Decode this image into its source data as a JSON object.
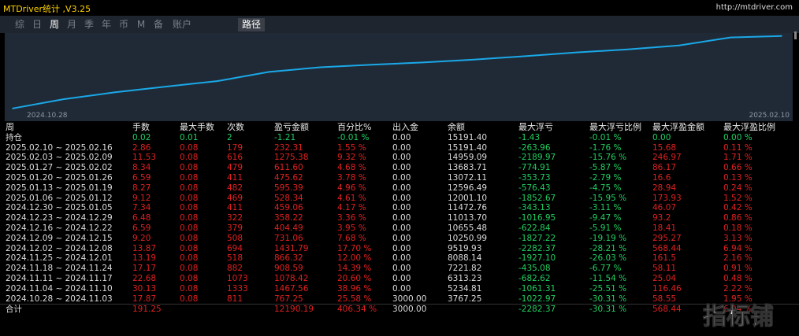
{
  "window": {
    "title": "MTDriver统计 ,V3.25",
    "url": "http://mtdriver.com"
  },
  "toolbar": {
    "tabs": [
      "综",
      "日",
      "周",
      "月",
      "季",
      "年",
      "币",
      "M",
      "备",
      "账户"
    ],
    "active_tab": "周",
    "path_button": "路径"
  },
  "chart": {
    "start_date": "2024.10.28",
    "end_date": "2025.02.10"
  },
  "chart_data": {
    "type": "line",
    "x": [
      "2024.10.28",
      "2024.11.04",
      "2024.11.11",
      "2024.11.18",
      "2024.11.25",
      "2024.12.02",
      "2024.12.09",
      "2024.12.16",
      "2024.12.23",
      "2024.12.30",
      "2025.01.06",
      "2025.01.13",
      "2025.01.20",
      "2025.01.27",
      "2025.02.03",
      "2025.02.10"
    ],
    "series": [
      {
        "values": [
          3767.25,
          5234.81,
          6313.23,
          7221.82,
          8088.14,
          9519.93,
          10250.99,
          10655.48,
          11013.7,
          11472.76,
          12001.1,
          12596.49,
          13072.11,
          13683.71,
          14959.09,
          15191.4
        ]
      }
    ],
    "line_color": "#1aa8e8"
  },
  "table": {
    "headers": [
      "周",
      "手数",
      "最大手数",
      "次数",
      "盈亏金额",
      "百分比%",
      "出入金",
      "余额",
      "最大浮亏",
      "最大浮亏比例",
      "最大浮盈金额",
      "最大浮盈比例"
    ],
    "holding": [
      "持仓",
      "0.02",
      "0.01",
      "2",
      "-1.21",
      "-0.01 %",
      "0.00",
      "15191.40",
      "-1.43",
      "-0.01 %",
      "0.00",
      "0.00 %"
    ],
    "rows": [
      [
        "2025.02.10 ~ 2025.02.16",
        "2.86",
        "0.08",
        "179",
        "232.31",
        "1.55 %",
        "0.00",
        "15191.40",
        "-263.96",
        "-1.76 %",
        "15.68",
        "0.11 %"
      ],
      [
        "2025.02.03 ~ 2025.02.09",
        "11.53",
        "0.08",
        "616",
        "1275.38",
        "9.32 %",
        "0.00",
        "14959.09",
        "-2189.97",
        "-15.76 %",
        "246.97",
        "1.71 %"
      ],
      [
        "2025.01.27 ~ 2025.02.02",
        "8.34",
        "0.08",
        "479",
        "611.60",
        "4.68 %",
        "0.00",
        "13683.71",
        "-774.91",
        "-5.87 %",
        "86.17",
        "0.66 %"
      ],
      [
        "2025.01.20 ~ 2025.01.26",
        "6.59",
        "0.08",
        "411",
        "475.62",
        "3.78 %",
        "0.00",
        "13072.11",
        "-353.73",
        "-2.79 %",
        "16.6",
        "0.13 %"
      ],
      [
        "2025.01.13 ~ 2025.01.19",
        "8.27",
        "0.08",
        "482",
        "595.39",
        "4.96 %",
        "0.00",
        "12596.49",
        "-576.43",
        "-4.75 %",
        "28.94",
        "0.24 %"
      ],
      [
        "2025.01.06 ~ 2025.01.12",
        "9.12",
        "0.08",
        "469",
        "528.34",
        "4.61 %",
        "0.00",
        "12001.10",
        "-1852.67",
        "-15.95 %",
        "173.93",
        "1.52 %"
      ],
      [
        "2024.12.30 ~ 2025.01.05",
        "7.34",
        "0.08",
        "411",
        "459.06",
        "4.17 %",
        "0.00",
        "11472.76",
        "-343.13",
        "-3.11 %",
        "46.07",
        "0.42 %"
      ],
      [
        "2024.12.23 ~ 2024.12.29",
        "6.48",
        "0.08",
        "322",
        "358.22",
        "3.36 %",
        "0.00",
        "11013.70",
        "-1016.95",
        "-9.47 %",
        "93.2",
        "0.86 %"
      ],
      [
        "2024.12.16 ~ 2024.12.22",
        "6.59",
        "0.08",
        "379",
        "404.49",
        "3.95 %",
        "0.00",
        "10655.48",
        "-622.84",
        "-5.91 %",
        "18.41",
        "0.18 %"
      ],
      [
        "2024.12.09 ~ 2024.12.15",
        "9.20",
        "0.08",
        "508",
        "731.06",
        "7.68 %",
        "0.00",
        "10250.99",
        "-1827.22",
        "-19.19 %",
        "295.27",
        "3.13 %"
      ],
      [
        "2024.12.02 ~ 2024.12.08",
        "13.87",
        "0.08",
        "694",
        "1431.79",
        "17.70 %",
        "0.00",
        "9519.93",
        "-2282.37",
        "-28.21 %",
        "568.44",
        "6.94 %"
      ],
      [
        "2024.11.25 ~ 2024.12.01",
        "13.19",
        "0.08",
        "518",
        "866.32",
        "12.00 %",
        "0.00",
        "8088.14",
        "-1927.10",
        "-26.03 %",
        "161.5",
        "2.16 %"
      ],
      [
        "2024.11.18 ~ 2024.11.24",
        "17.17",
        "0.08",
        "882",
        "908.59",
        "14.39 %",
        "0.00",
        "7221.82",
        "-435.08",
        "-6.77 %",
        "58.11",
        "0.91 %"
      ],
      [
        "2024.11.11 ~ 2024.11.17",
        "22.68",
        "0.08",
        "1073",
        "1078.42",
        "20.60 %",
        "0.00",
        "6313.23",
        "-682.62",
        "-11.54 %",
        "25.04",
        "0.48 %"
      ],
      [
        "2024.11.04 ~ 2024.11.10",
        "30.13",
        "0.08",
        "1333",
        "1467.56",
        "38.96 %",
        "0.00",
        "5234.81",
        "-1061.31",
        "-25.51 %",
        "116.46",
        "2.22 %"
      ],
      [
        "2024.10.28 ~ 2024.11.03",
        "17.87",
        "0.08",
        "811",
        "767.25",
        "25.58 %",
        "3000.00",
        "3767.25",
        "-1022.97",
        "-30.31 %",
        "58.55",
        "1.95 %"
      ]
    ],
    "total": [
      "合计",
      "191.25",
      "",
      "",
      "12190.19",
      "406.34 %",
      "3000.00",
      "",
      "-2282.37",
      "-30.31 %",
      "568.44",
      "6.94 %"
    ]
  },
  "watermark": {
    "text": "指标铺"
  },
  "colors": {
    "positive": "#e02020",
    "negative": "#20d060",
    "title": "#ffd200",
    "line": "#1aa8e8"
  }
}
